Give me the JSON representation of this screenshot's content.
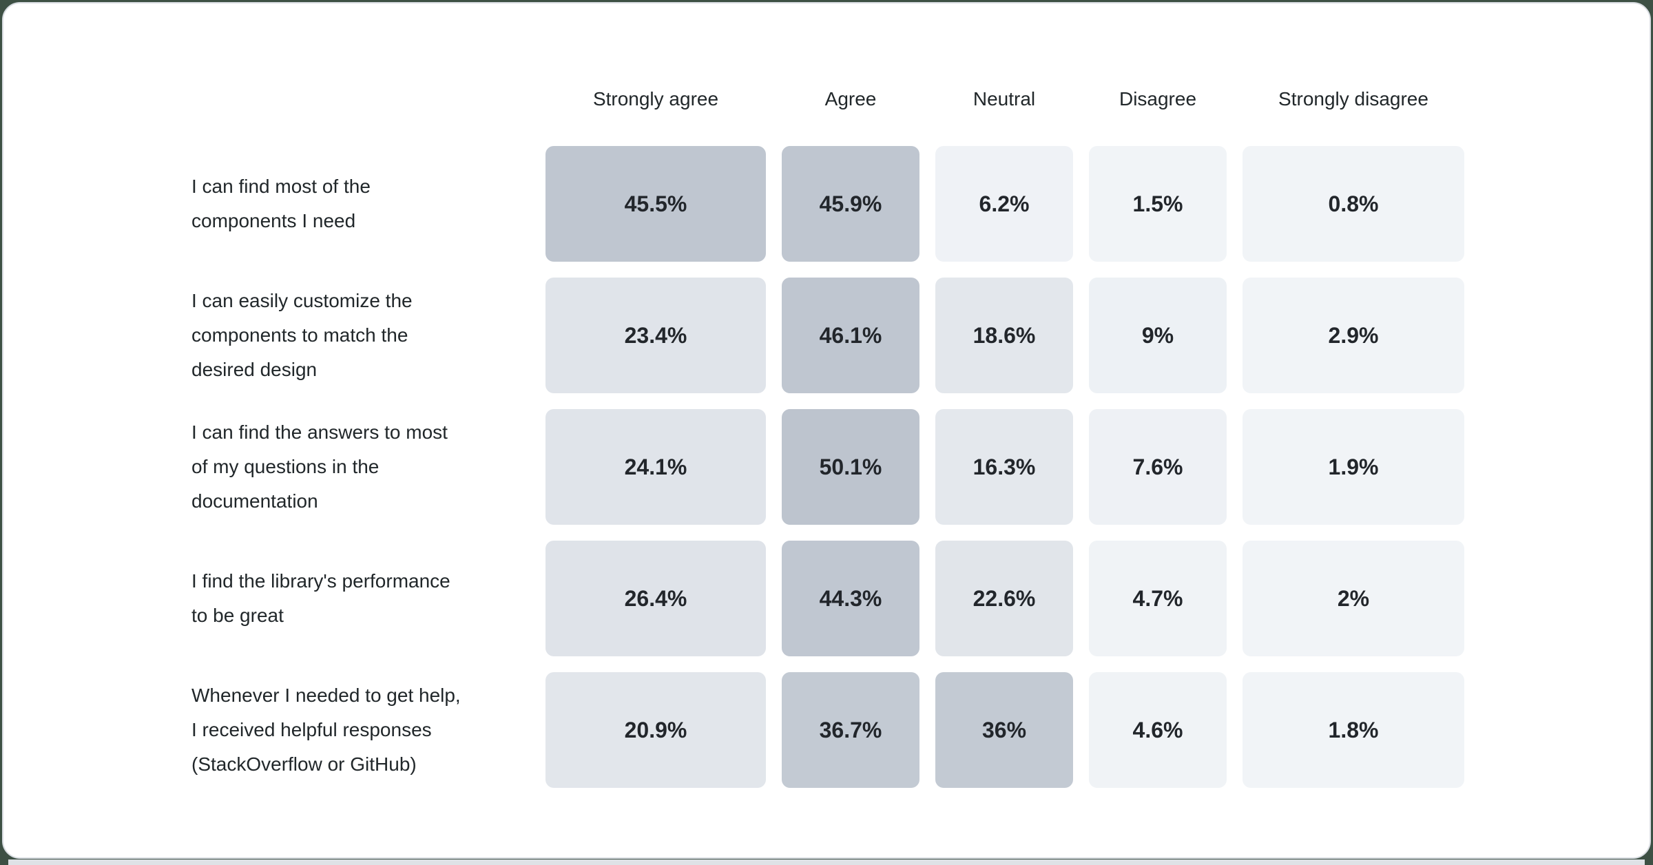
{
  "page": {
    "background_color": "#3d5044",
    "card_background": "#ffffff",
    "card_border_color": "#d8dce1",
    "bottom_strip_color": "#dfe2e6"
  },
  "chart_data": {
    "type": "heatmap",
    "title": "",
    "unit": "%",
    "columns": [
      "Strongly agree",
      "Agree",
      "Neutral",
      "Disagree",
      "Strongly disagree"
    ],
    "row_labels": [
      "I can find most of the components I need",
      "I can easily customize the components to match the desired design",
      "I can find the answers to most of my questions in the documentation",
      "I find the library's performance to be great",
      "Whenever I needed to get help, I received helpful responses (StackOverflow or GitHub)"
    ],
    "values": [
      [
        45.5,
        45.9,
        6.2,
        1.5,
        0.8
      ],
      [
        23.4,
        46.1,
        18.6,
        9,
        2.9
      ],
      [
        24.1,
        50.1,
        16.3,
        7.6,
        1.9
      ],
      [
        26.4,
        44.3,
        22.6,
        4.7,
        2
      ],
      [
        20.9,
        36.7,
        36,
        4.6,
        1.8
      ]
    ],
    "color_scale": {
      "low_value_color": "#f1f4f7",
      "high_value_color": "#bdc4ce"
    },
    "legend_position": "none",
    "grid": "off"
  },
  "grid": {
    "headers": [
      "Strongly agree",
      "Agree",
      "Neutral",
      "Disagree",
      "Strongly disagree"
    ],
    "rows": [
      {
        "lines": [
          "I can find most of the",
          "components I need"
        ],
        "cells": [
          "45.5%",
          "45.9%",
          "6.2%",
          "1.5%",
          "0.8%"
        ],
        "colors": [
          "#bfc6d0",
          "#bfc6d0",
          "#eff2f6",
          "#f1f4f7",
          "#f1f4f7"
        ]
      },
      {
        "lines": [
          "I can easily customize the",
          "components to match the",
          "desired design"
        ],
        "cells": [
          "23.4%",
          "46.1%",
          "18.6%",
          "9%",
          "2.9%"
        ],
        "colors": [
          "#e0e4ea",
          "#bfc6d0",
          "#e3e7ec",
          "#edf1f5",
          "#f1f4f7"
        ]
      },
      {
        "lines": [
          "I can find the answers to most",
          "of my questions in the",
          "documentation"
        ],
        "cells": [
          "24.1%",
          "50.1%",
          "16.3%",
          "7.6%",
          "1.9%"
        ],
        "colors": [
          "#e0e4ea",
          "#bdc4ce",
          "#e4e8ed",
          "#eef1f5",
          "#f1f4f7"
        ]
      },
      {
        "lines": [
          "I find the library's performance",
          "to be great"
        ],
        "cells": [
          "26.4%",
          "44.3%",
          "22.6%",
          "4.7%",
          "2%"
        ],
        "colors": [
          "#dfe3e9",
          "#c0c7d1",
          "#e1e5ea",
          "#f0f3f6",
          "#f1f4f7"
        ]
      },
      {
        "lines": [
          "Whenever I needed to get help,",
          "I received helpful responses",
          "(StackOverflow or GitHub)"
        ],
        "cells": [
          "20.9%",
          "36.7%",
          "36%",
          "4.6%",
          "1.8%"
        ],
        "colors": [
          "#e2e6eb",
          "#c3cad3",
          "#c3cad3",
          "#f0f3f6",
          "#f1f4f7"
        ]
      }
    ]
  }
}
